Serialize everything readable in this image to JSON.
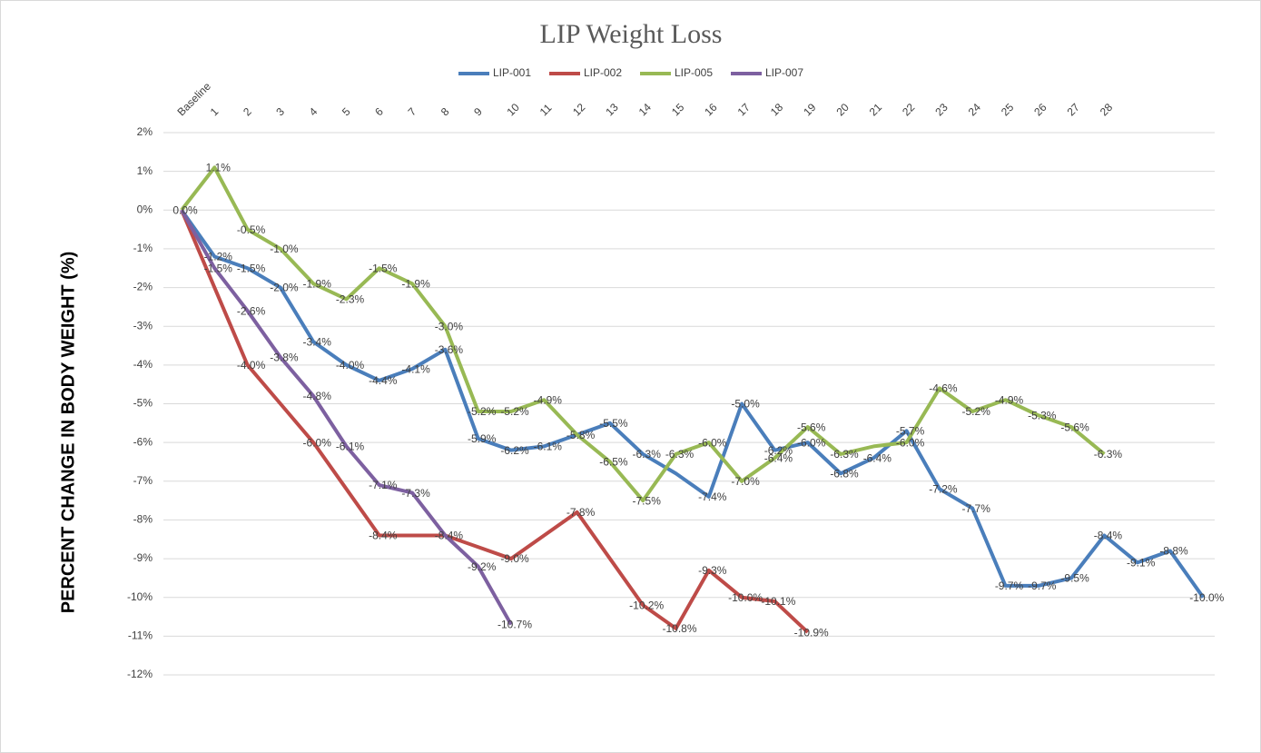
{
  "chart_data": {
    "type": "line",
    "title": "LIP Weight Loss",
    "y_label": "PERCENT CHANGE IN BODY WEIGHT (%)",
    "categories": [
      "Baseline",
      "1",
      "2",
      "3",
      "4",
      "5",
      "6",
      "7",
      "8",
      "9",
      "10",
      "11",
      "12",
      "13",
      "14",
      "15",
      "16",
      "17",
      "18",
      "19",
      "20",
      "21",
      "22",
      "23",
      "24",
      "25",
      "26",
      "27",
      "28",
      null,
      null,
      null
    ],
    "series": [
      {
        "name": "LIP-001",
        "color": "#4a7ebb",
        "values": [
          0,
          -1.2,
          -1.5,
          -2.0,
          -3.4,
          -4.0,
          -4.4,
          -4.1,
          -3.6,
          -5.9,
          -6.2,
          -6.1,
          -5.8,
          -5.5,
          -6.3,
          -6.8,
          -7.4,
          -5.0,
          -6.2,
          -6.0,
          -6.8,
          -6.4,
          -5.7,
          -7.2,
          -7.7,
          -9.7,
          -9.7,
          -9.5,
          -8.4,
          -9.1,
          -8.8,
          -10.0
        ],
        "value_labels": [
          "0.0%",
          "-1.2%",
          "-1.5%",
          "-2.0%",
          "-3.4%",
          "-4.0%",
          "-4.4%",
          "-4.1%",
          "-3.6%",
          "-5.9%",
          "-6.2%",
          "-6.1%",
          "-5.8%",
          "-5.5%",
          "-6.3%",
          null,
          "-7.4%",
          "-5.0%",
          "-6.2%",
          "-6.0%",
          "-6.8%",
          "-6.4%",
          "-5.7%",
          "-7.2%",
          "-7.7%",
          "-9.7%",
          "-9.7%",
          "-9.5%",
          "-8.4%",
          "-9.1%",
          "-8.8%",
          "-10.0%"
        ]
      },
      {
        "name": "LIP-002",
        "color": "#be4b48",
        "values": [
          0,
          -2.0,
          -4.0,
          -5.0,
          -6.0,
          -7.2,
          -8.4,
          -8.4,
          -8.4,
          -8.7,
          -9.0,
          -8.4,
          -7.8,
          -9.0,
          -10.2,
          -10.8,
          -9.3,
          -10.0,
          -10.1,
          -10.9,
          null,
          null,
          null,
          null,
          null,
          null,
          null,
          null,
          null,
          null,
          null,
          null
        ],
        "value_labels": [
          null,
          null,
          "-4.0%",
          null,
          "-6.0%",
          null,
          "-8.4%",
          null,
          "-8.4%",
          null,
          "-9.0%",
          null,
          "-7.8%",
          null,
          "-10.2%",
          "-10.8%",
          "-9.3%",
          "-10.0%",
          "-10.1%",
          "-10.9%",
          null,
          null,
          null,
          null,
          null,
          null,
          null,
          null,
          null,
          null,
          null,
          null
        ]
      },
      {
        "name": "LIP-005",
        "color": "#98b954",
        "values": [
          0,
          1.1,
          -0.5,
          -1.0,
          -1.9,
          -2.3,
          -1.5,
          -1.9,
          -3.0,
          -5.2,
          -5.2,
          -4.9,
          -5.8,
          -6.5,
          -7.5,
          -6.3,
          -6.0,
          -7.0,
          -6.4,
          -5.6,
          -6.3,
          -6.1,
          -6.0,
          -4.6,
          -5.2,
          -4.9,
          -5.3,
          -5.6,
          -6.3,
          null,
          null,
          null
        ],
        "value_labels": [
          null,
          "1.1%",
          "-0.5%",
          "-1.0%",
          "-1.9%",
          "-2.3%",
          "-1.5%",
          "-1.9%",
          "-3.0%",
          "-5.2%",
          "-5.2%",
          "-4.9%",
          null,
          "-6.5%",
          "-7.5%",
          "-6.3%",
          "-6.0%",
          "-7.0%",
          "-6.4%",
          "-5.6%",
          "-6.3%",
          null,
          "-6.0%",
          "-4.6%",
          "-5.2%",
          "-4.9%",
          "-5.3%",
          "-5.6%",
          "-6.3%",
          null,
          null,
          null
        ]
      },
      {
        "name": "LIP-007",
        "color": "#7d60a0",
        "values": [
          0,
          -1.5,
          -2.6,
          -3.8,
          -4.8,
          -6.1,
          -7.1,
          -7.3,
          -8.4,
          -9.2,
          -10.7,
          null,
          null,
          null,
          null,
          null,
          null,
          null,
          null,
          null,
          null,
          null,
          null,
          null,
          null,
          null,
          null,
          null,
          null,
          null,
          null,
          null
        ],
        "value_labels": [
          null,
          "-1.5%",
          "-2.6%",
          "-3.8%",
          "-4.8%",
          "-6.1%",
          "-7.1%",
          "-7.3%",
          null,
          "-9.2%",
          "-10.7%",
          null,
          null,
          null,
          null,
          null,
          null,
          null,
          null,
          null,
          null,
          null,
          null,
          null,
          null,
          null,
          null,
          null,
          null,
          null,
          null,
          null
        ]
      }
    ],
    "ylim": [
      -12,
      2
    ],
    "yticks": [
      {
        "value": 2,
        "label": "2%"
      },
      {
        "value": 1,
        "label": "1%"
      },
      {
        "value": 0,
        "label": "0%"
      },
      {
        "value": -1,
        "label": "-1%"
      },
      {
        "value": -2,
        "label": "-2%"
      },
      {
        "value": -3,
        "label": "-3%"
      },
      {
        "value": -4,
        "label": "-4%"
      },
      {
        "value": -5,
        "label": "-5%"
      },
      {
        "value": -6,
        "label": "-6%"
      },
      {
        "value": -7,
        "label": "-7%"
      },
      {
        "value": -8,
        "label": "-8%"
      },
      {
        "value": -9,
        "label": "-9%"
      },
      {
        "value": -10,
        "label": "-10%"
      },
      {
        "value": -11,
        "label": "-11%"
      },
      {
        "value": -12,
        "label": "-12%"
      }
    ],
    "grid": true,
    "legend": "top"
  }
}
